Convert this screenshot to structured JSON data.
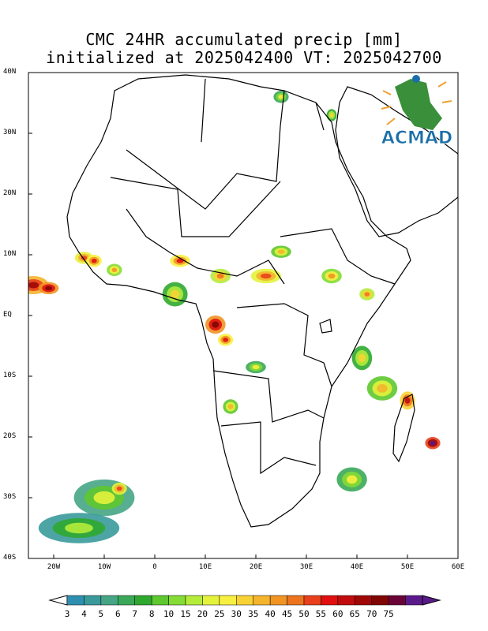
{
  "title": {
    "line1": "CMC 24HR accumulated precip [mm]",
    "line2": "initialized at 2025042400 VT: 2025042700"
  },
  "logo": {
    "text": "ACMAD",
    "icon": "acmad-africa-logo-icon",
    "colors": {
      "text": "#1a6fa8",
      "africa": "#3a8f3a",
      "rays": "#f0a030"
    }
  },
  "map": {
    "extent": {
      "lon_min": -25,
      "lon_max": 60,
      "lat_min": -40,
      "lat_max": 40
    },
    "lat_labels": [
      {
        "lat": 40,
        "text": "40N"
      },
      {
        "lat": 30,
        "text": "30N"
      },
      {
        "lat": 20,
        "text": "20N"
      },
      {
        "lat": 10,
        "text": "10N"
      },
      {
        "lat": 0,
        "text": "EQ"
      },
      {
        "lat": -10,
        "text": "10S"
      },
      {
        "lat": -20,
        "text": "20S"
      },
      {
        "lat": -30,
        "text": "30S"
      },
      {
        "lat": -40,
        "text": "40S"
      }
    ],
    "lon_labels": [
      {
        "lon": -20,
        "text": "20W"
      },
      {
        "lon": -10,
        "text": "10W"
      },
      {
        "lon": 0,
        "text": "0"
      },
      {
        "lon": 10,
        "text": "10E"
      },
      {
        "lon": 20,
        "text": "20E"
      },
      {
        "lon": 30,
        "text": "30E"
      },
      {
        "lon": 40,
        "text": "40E"
      },
      {
        "lon": 50,
        "text": "50E"
      },
      {
        "lon": 60,
        "text": "60E"
      }
    ]
  },
  "colorbar": {
    "labels": [
      "3",
      "4",
      "5",
      "6",
      "7",
      "8",
      "10",
      "15",
      "20",
      "25",
      "30",
      "35",
      "40",
      "45",
      "50",
      "55",
      "60",
      "65",
      "70",
      "75"
    ],
    "colors": [
      "#2f8fb0",
      "#3a9a9a",
      "#45a585",
      "#3aa858",
      "#2fa830",
      "#5ec82e",
      "#84dc34",
      "#b4ec3c",
      "#e4f23c",
      "#f8f040",
      "#f8d234",
      "#f4b42c",
      "#f09424",
      "#ec7420",
      "#e8401c",
      "#e01010",
      "#c00c0c",
      "#a00808",
      "#800606",
      "#6a0438",
      "#5a1a8a"
    ]
  },
  "precip_areas": [
    {
      "lon": -24,
      "lat": 5,
      "rx": 3,
      "ry": 1.5,
      "level": 17
    },
    {
      "lon": -21,
      "lat": 4.5,
      "rx": 2,
      "ry": 1,
      "level": 18
    },
    {
      "lon": -14,
      "lat": 9.5,
      "rx": 1.8,
      "ry": 1,
      "level": 14
    },
    {
      "lon": -12,
      "lat": 9,
      "rx": 1.5,
      "ry": 1,
      "level": 15
    },
    {
      "lon": -8,
      "lat": 7.5,
      "rx": 1.5,
      "ry": 1,
      "level": 12
    },
    {
      "lon": 5,
      "lat": 9,
      "rx": 2,
      "ry": 1,
      "level": 15
    },
    {
      "lon": 4,
      "lat": 3.5,
      "rx": 2.5,
      "ry": 2,
      "level": 10
    },
    {
      "lon": 13,
      "lat": 6.5,
      "rx": 2,
      "ry": 1.2,
      "level": 13
    },
    {
      "lon": 22,
      "lat": 6.5,
      "rx": 3,
      "ry": 1.2,
      "level": 14
    },
    {
      "lon": 25,
      "lat": 10.5,
      "rx": 2,
      "ry": 1,
      "level": 11
    },
    {
      "lon": 35,
      "lat": 6.5,
      "rx": 2,
      "ry": 1.2,
      "level": 12
    },
    {
      "lon": 12,
      "lat": -1.5,
      "rx": 2,
      "ry": 1.5,
      "level": 18
    },
    {
      "lon": 14,
      "lat": -4,
      "rx": 1.5,
      "ry": 1,
      "level": 15
    },
    {
      "lon": 42,
      "lat": 3.5,
      "rx": 1.5,
      "ry": 1,
      "level": 13
    },
    {
      "lon": 41,
      "lat": -7,
      "rx": 2,
      "ry": 2,
      "level": 10
    },
    {
      "lon": 45,
      "lat": -12,
      "rx": 3,
      "ry": 2,
      "level": 11
    },
    {
      "lon": 50,
      "lat": -14,
      "rx": 1.5,
      "ry": 1.5,
      "level": 16
    },
    {
      "lon": 55,
      "lat": -21,
      "rx": 1.5,
      "ry": 1,
      "level": 20
    },
    {
      "lon": 39,
      "lat": -27,
      "rx": 3,
      "ry": 2,
      "level": 9
    },
    {
      "lon": 15,
      "lat": -15,
      "rx": 1.5,
      "ry": 1.2,
      "level": 11
    },
    {
      "lon": 20,
      "lat": -8.5,
      "rx": 2,
      "ry": 1,
      "level": 9
    },
    {
      "lon": -10,
      "lat": -30,
      "rx": 6,
      "ry": 3,
      "level": 8
    },
    {
      "lon": -7,
      "lat": -28.5,
      "rx": 1.5,
      "ry": 1,
      "level": 14
    },
    {
      "lon": -15,
      "lat": -35,
      "rx": 8,
      "ry": 2.5,
      "level": 7
    },
    {
      "lon": 25,
      "lat": 36,
      "rx": 1.5,
      "ry": 1,
      "level": 9
    },
    {
      "lon": 35,
      "lat": 33,
      "rx": 1,
      "ry": 1,
      "level": 10
    }
  ]
}
